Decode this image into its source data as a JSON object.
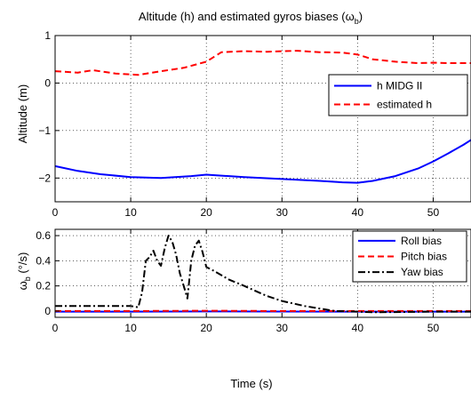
{
  "chart_data": [
    {
      "type": "line",
      "title_main": "Altitude (h) and estimated gyros biases (ω",
      "title_sub": "b",
      "title_close": ")",
      "xlabel": "",
      "ylabel": "Altitude (m)",
      "xlim": [
        0,
        55
      ],
      "ylim": [
        -2.5,
        1
      ],
      "xticks": [
        0,
        10,
        20,
        30,
        40,
        50
      ],
      "yticks": [
        -2,
        -1,
        0,
        1
      ],
      "ytick_labels": [
        "−2",
        "−1",
        "0",
        "1"
      ],
      "grid": true,
      "legend_position": "right",
      "series": [
        {
          "name": "h MIDG II",
          "color": "#0000ff",
          "style": "solid",
          "x": [
            0,
            3,
            6,
            10,
            14,
            18,
            20,
            22,
            25,
            30,
            35,
            38,
            40,
            42,
            45,
            48,
            50,
            52,
            54,
            55
          ],
          "y": [
            -1.75,
            -1.85,
            -1.92,
            -1.98,
            -2.0,
            -1.96,
            -1.93,
            -1.95,
            -1.98,
            -2.02,
            -2.06,
            -2.09,
            -2.1,
            -2.06,
            -1.96,
            -1.8,
            -1.65,
            -1.48,
            -1.3,
            -1.2
          ]
        },
        {
          "name": "estimated h",
          "color": "#ff0000",
          "style": "dashed",
          "x": [
            0,
            3,
            5,
            8,
            11,
            14,
            17,
            20,
            22,
            25,
            28,
            32,
            35,
            38,
            40,
            42,
            45,
            48,
            50,
            52,
            55
          ],
          "y": [
            0.25,
            0.22,
            0.27,
            0.2,
            0.17,
            0.25,
            0.32,
            0.45,
            0.65,
            0.67,
            0.66,
            0.68,
            0.65,
            0.64,
            0.6,
            0.5,
            0.45,
            0.42,
            0.43,
            0.42,
            0.42
          ]
        }
      ]
    },
    {
      "type": "line",
      "xlabel": "Time (s)",
      "ylabel_main": "ω",
      "ylabel_sub": "b",
      "ylabel_unit": " (°/s)",
      "xlim": [
        0,
        55
      ],
      "ylim": [
        -0.05,
        0.65
      ],
      "xticks": [
        0,
        10,
        20,
        30,
        40,
        50
      ],
      "yticks": [
        0,
        0.2,
        0.4,
        0.6
      ],
      "ytick_labels": [
        "0",
        "0.2",
        "0.4",
        "0.6"
      ],
      "grid": true,
      "legend_position": "top-right",
      "series": [
        {
          "name": "Roll bias",
          "color": "#0000ff",
          "style": "solid",
          "x": [
            0,
            10,
            20,
            30,
            40,
            50,
            55
          ],
          "y": [
            -0.005,
            -0.005,
            -0.003,
            -0.004,
            -0.005,
            -0.005,
            -0.005
          ]
        },
        {
          "name": "Pitch bias",
          "color": "#ff0000",
          "style": "dashed",
          "x": [
            0,
            10,
            20,
            30,
            40,
            50,
            55
          ],
          "y": [
            0.0,
            0.0,
            0.002,
            0.0,
            0.0,
            0.0,
            0.0
          ]
        },
        {
          "name": "Yaw bias",
          "color": "#000000",
          "style": "dashdot",
          "x": [
            0,
            5,
            10,
            11,
            11.5,
            12,
            12.5,
            13,
            13.5,
            14,
            14.5,
            15,
            15.5,
            16,
            16.5,
            17,
            17.5,
            18,
            18.5,
            19,
            19.5,
            20,
            21,
            23,
            25,
            28,
            30,
            33,
            35,
            37,
            40,
            42,
            45,
            50,
            55
          ],
          "y": [
            0.04,
            0.04,
            0.04,
            0.03,
            0.15,
            0.4,
            0.43,
            0.48,
            0.4,
            0.36,
            0.5,
            0.6,
            0.55,
            0.45,
            0.3,
            0.2,
            0.1,
            0.4,
            0.52,
            0.56,
            0.47,
            0.35,
            0.32,
            0.25,
            0.2,
            0.12,
            0.08,
            0.04,
            0.02,
            0.0,
            -0.005,
            -0.01,
            -0.008,
            -0.005,
            -0.005
          ]
        }
      ]
    }
  ]
}
